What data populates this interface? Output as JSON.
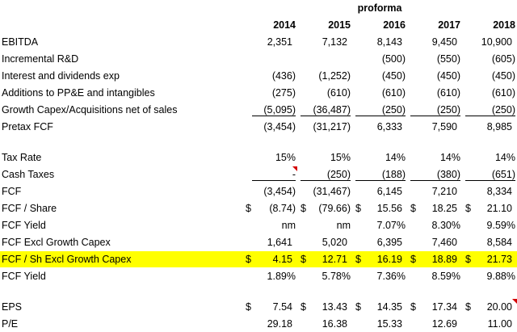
{
  "header": {
    "proforma": "proforma",
    "years": [
      "2014",
      "2015",
      "2016",
      "2017",
      "2018"
    ]
  },
  "rows": [
    {
      "label": "EBITDA",
      "values": [
        "2,351",
        "7,132",
        "8,143",
        "9,450",
        "10,900"
      ]
    },
    {
      "label": "Incremental R&D",
      "values": [
        "",
        "",
        "(500)",
        "(550)",
        "(605)"
      ]
    },
    {
      "label": "Interest and dividends exp",
      "values": [
        "(436)",
        "(1,252)",
        "(450)",
        "(450)",
        "(450)"
      ]
    },
    {
      "label": "Additions to PP&E and intangibles",
      "values": [
        "(275)",
        "(610)",
        "(610)",
        "(610)",
        "(610)"
      ]
    },
    {
      "label": "Growth Capex/Acquisitions net of sales",
      "values": [
        "(5,095)",
        "(36,487)",
        "(250)",
        "(250)",
        "(250)"
      ]
    },
    {
      "label": "Pretax FCF",
      "values": [
        "(3,454)",
        "(31,217)",
        "6,333",
        "7,590",
        "8,985"
      ]
    },
    {
      "label": "Tax Rate",
      "values": [
        "15%",
        "15%",
        "14%",
        "14%",
        "14%"
      ]
    },
    {
      "label": "Cash Taxes",
      "values": [
        "-",
        "(250)",
        "(188)",
        "(380)",
        "(651)"
      ]
    },
    {
      "label": "FCF",
      "values": [
        "(3,454)",
        "(31,467)",
        "6,145",
        "7,210",
        "8,334"
      ]
    },
    {
      "label": "FCF / Share",
      "currency": "$",
      "values": [
        "(8.74)",
        "(79.66)",
        "15.56",
        "18.25",
        "21.10"
      ]
    },
    {
      "label": "FCF Yield",
      "values": [
        "nm",
        "nm",
        "7.07%",
        "8.30%",
        "9.59%"
      ]
    },
    {
      "label": "FCF Excl Growth Capex",
      "values": [
        "1,641",
        "5,020",
        "6,395",
        "7,460",
        "8,584"
      ]
    },
    {
      "label": "FCF / Sh Excl Growth Capex",
      "currency": "$",
      "values": [
        "4.15",
        "12.71",
        "16.19",
        "18.89",
        "21.73"
      ],
      "highlight_color": "#ffff00"
    },
    {
      "label": "FCF Yield",
      "values": [
        "1.89%",
        "5.78%",
        "7.36%",
        "8.59%",
        "9.88%"
      ]
    },
    {
      "label": "EPS",
      "currency": "$",
      "values": [
        "7.54",
        "13.43",
        "14.35",
        "17.34",
        "20.00"
      ]
    },
    {
      "label": "P/E",
      "values": [
        "29.18",
        "16.38",
        "15.33",
        "12.69",
        "11.00"
      ]
    }
  ],
  "colors": {
    "highlight": "#ffff00",
    "comment_flag": "#d40000"
  }
}
